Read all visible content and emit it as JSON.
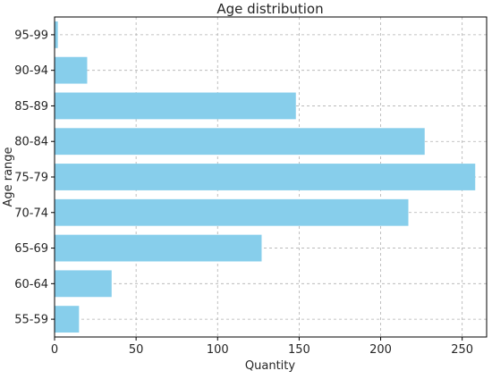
{
  "chart_data": {
    "type": "bar",
    "orientation": "horizontal",
    "title": "Age distribution",
    "xlabel": "Quantity",
    "ylabel": "Age range",
    "categories": [
      "55-59",
      "60-64",
      "65-69",
      "70-74",
      "75-79",
      "80-84",
      "85-89",
      "90-94",
      "95-99"
    ],
    "values": [
      15,
      35,
      127,
      217,
      258,
      227,
      148,
      20,
      2
    ],
    "xlim": [
      0,
      265
    ],
    "xticks": [
      0,
      50,
      100,
      150,
      200,
      250
    ],
    "grid": true,
    "bar_color": "#87ceeb"
  }
}
